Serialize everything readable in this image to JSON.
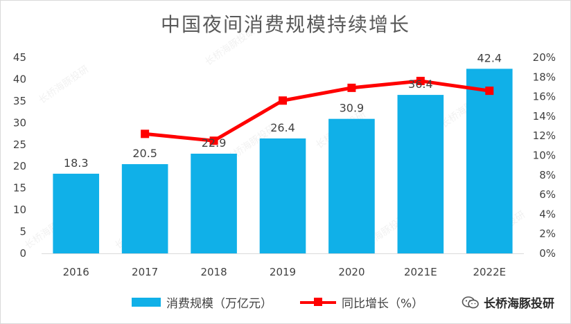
{
  "chart_data": {
    "type": "bar",
    "title": "中国夜间消费规模持续增长",
    "categories": [
      "2016",
      "2017",
      "2018",
      "2019",
      "2020",
      "2021E",
      "2022E"
    ],
    "series": [
      {
        "name": "消费规模（万亿元）",
        "type": "bar",
        "axis": "left",
        "values": [
          18.3,
          20.5,
          22.9,
          26.4,
          30.9,
          36.4,
          42.4
        ],
        "data_labels": [
          "18.3",
          "20.5",
          "22.9",
          "26.4",
          "30.9",
          "36.4",
          "42.4"
        ],
        "color": "#10b0e8"
      },
      {
        "name": "同比增长（%）",
        "type": "line",
        "axis": "right",
        "values": [
          null,
          12.2,
          11.5,
          15.6,
          16.9,
          17.6,
          16.6
        ],
        "color": "#ff0000"
      }
    ],
    "y_left": {
      "min": 0,
      "max": 45,
      "step": 5,
      "ticks": [
        "0",
        "5",
        "10",
        "15",
        "20",
        "25",
        "30",
        "35",
        "40",
        "45"
      ]
    },
    "y_right": {
      "min": 0,
      "max": 20,
      "step": 2,
      "ticks": [
        "0%",
        "2%",
        "4%",
        "6%",
        "8%",
        "10%",
        "12%",
        "14%",
        "16%",
        "18%",
        "20%"
      ]
    },
    "grid": false,
    "legend_position": "bottom"
  },
  "watermark": "长桥海豚投研",
  "brand": {
    "label": "长桥海豚投研",
    "icon": "wechat-icon"
  }
}
